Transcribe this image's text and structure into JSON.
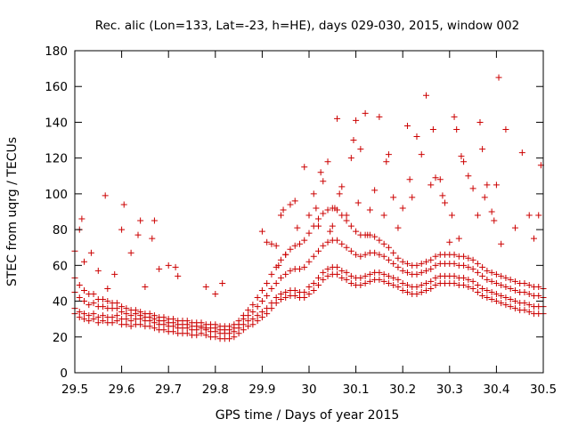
{
  "chart_data": {
    "type": "scatter",
    "title": "Rec. alic (Lon=133, Lat=-23, h=HE), days 029-030, 2015, window 002",
    "xlabel": "GPS time / Days of year 2015",
    "ylabel": "STEC from uqrg / TECUs",
    "xlim": [
      29.5,
      30.5
    ],
    "ylim": [
      0,
      180
    ],
    "xticks": [
      "29.5",
      "29.6",
      "29.7",
      "29.8",
      "29.9",
      "30",
      "30.1",
      "30.2",
      "30.3",
      "30.4",
      "30.5"
    ],
    "yticks": [
      "0",
      "20",
      "40",
      "60",
      "80",
      "100",
      "120",
      "140",
      "160",
      "180"
    ],
    "grid": false,
    "legend": "none",
    "marker": "plus",
    "color": "#cc0000",
    "series": [
      {
        "x": [
          29.5,
          29.51,
          29.52,
          29.53,
          29.54,
          29.55,
          29.56,
          29.57,
          29.58,
          29.59,
          29.6,
          29.61,
          29.62,
          29.63,
          29.64,
          29.65,
          29.66,
          29.67,
          29.68,
          29.69,
          29.7,
          29.71,
          29.72,
          29.73,
          29.74,
          29.75,
          29.76,
          29.77,
          29.78,
          29.79,
          29.8,
          29.81,
          29.82,
          29.83,
          29.84,
          29.85,
          29.86,
          29.87,
          29.88,
          29.89,
          29.9,
          29.91,
          29.92,
          29.93,
          29.94,
          29.95,
          29.96,
          29.97,
          29.98,
          29.99,
          30.0,
          30.01,
          30.02,
          30.03,
          30.04,
          30.05,
          30.06,
          30.07,
          30.08,
          30.09,
          30.1,
          30.11,
          30.12,
          30.13,
          30.14,
          30.15,
          30.16,
          30.17,
          30.18,
          30.19,
          30.2,
          30.21,
          30.22,
          30.23,
          30.24,
          30.25,
          30.26,
          30.27,
          30.28,
          30.29,
          30.3,
          30.31,
          30.32,
          30.33,
          30.34,
          30.35,
          30.36,
          30.37,
          30.38,
          30.39,
          30.4,
          30.41,
          30.42,
          30.43,
          30.44,
          30.45,
          30.46,
          30.47,
          30.48,
          30.49,
          30.5,
          29.5,
          29.51,
          29.52,
          29.53,
          29.54,
          29.55,
          29.56,
          29.57,
          29.58,
          29.59,
          29.6,
          29.61,
          29.62,
          29.63,
          29.64,
          29.65,
          29.66,
          29.67,
          29.68,
          29.69,
          29.7,
          29.71,
          29.72,
          29.73,
          29.74,
          29.75,
          29.76,
          29.77,
          29.78,
          29.79,
          29.8,
          29.81,
          29.82,
          29.83,
          29.84,
          29.85,
          29.86,
          29.87,
          29.88,
          29.89,
          29.9,
          29.91,
          29.92,
          29.93,
          29.94,
          29.95,
          29.96,
          29.97,
          29.98,
          29.99,
          30.0,
          30.01,
          30.02,
          30.03,
          30.04,
          30.05,
          30.06,
          30.07,
          30.08,
          30.09,
          30.1,
          30.11,
          30.12,
          30.13,
          30.14,
          30.15,
          30.16,
          30.17,
          30.18,
          30.19,
          30.2,
          30.21,
          30.22,
          30.23,
          30.24,
          30.25,
          30.26,
          30.27,
          30.28,
          30.29,
          30.3,
          30.31,
          30.32,
          30.33,
          30.34,
          30.35,
          30.36,
          30.37,
          30.38,
          30.39,
          30.4,
          30.41,
          30.42,
          30.43,
          30.44,
          30.45,
          30.46,
          30.47,
          30.48,
          30.49,
          30.5,
          29.5,
          29.51,
          29.52,
          29.53,
          29.54,
          29.55,
          29.56,
          29.57,
          29.58,
          29.59,
          29.6,
          29.61,
          29.62,
          29.63,
          29.64,
          29.65,
          29.66,
          29.67,
          29.68,
          29.69,
          29.7,
          29.71,
          29.72,
          29.73,
          29.74,
          29.75,
          29.76,
          29.77,
          29.78,
          29.79,
          29.8,
          29.81,
          29.82,
          29.83,
          29.84,
          29.85,
          29.86,
          29.87,
          29.88,
          29.89,
          29.9,
          29.91,
          29.92,
          29.93,
          29.94,
          29.95,
          29.96,
          29.97,
          29.98,
          29.99,
          30.0,
          30.01,
          30.02,
          30.03,
          30.04,
          30.05,
          30.06,
          30.07,
          30.08,
          30.09,
          30.1,
          30.11,
          30.12,
          30.13,
          30.14,
          30.15,
          30.16,
          30.17,
          30.18,
          30.19,
          30.2,
          30.21,
          30.22,
          30.23,
          30.24,
          30.25,
          30.26,
          30.27,
          30.28,
          30.29,
          30.3,
          30.31,
          30.32,
          30.33,
          30.34,
          30.35,
          30.36,
          30.37,
          30.38,
          30.39,
          30.4,
          30.41,
          30.42,
          30.43,
          30.44,
          30.45,
          30.46,
          30.47,
          30.48,
          30.49,
          30.5,
          29.5,
          29.51,
          29.52,
          29.53,
          29.54,
          29.55,
          29.56,
          29.57,
          29.58,
          29.59,
          29.6,
          29.61,
          29.62,
          29.63,
          29.64,
          29.65,
          29.66,
          29.67,
          29.68,
          29.69,
          29.7,
          29.71,
          29.72,
          29.73,
          29.74,
          29.75,
          29.76,
          29.77,
          29.78,
          29.79,
          29.8,
          29.81,
          29.82,
          29.83,
          29.84,
          29.85,
          29.86,
          29.87,
          29.88,
          29.89,
          29.9,
          29.91,
          29.92,
          29.93,
          29.94,
          29.95,
          29.96,
          29.97,
          29.98,
          29.99,
          30.0,
          30.01,
          30.02,
          30.03,
          30.04,
          30.05,
          30.06,
          30.07,
          30.08,
          30.09,
          30.1,
          30.11,
          30.12,
          30.13,
          30.14,
          30.15,
          30.16,
          30.17,
          30.18,
          30.19,
          30.2,
          30.21,
          30.22,
          30.23,
          30.24,
          30.25,
          30.26,
          30.27,
          30.28,
          30.29,
          30.3,
          30.31,
          30.32,
          30.33,
          30.34,
          30.35,
          30.36,
          30.37,
          30.38,
          30.39,
          30.4,
          30.41,
          30.42,
          30.43,
          30.44,
          30.45,
          30.46,
          30.47,
          30.48,
          30.49,
          30.5,
          29.5,
          29.51,
          29.515,
          29.52,
          29.535,
          29.55,
          29.565,
          29.57,
          29.585,
          29.6,
          29.605,
          29.62,
          29.635,
          29.64,
          29.65,
          29.665,
          29.67,
          29.68,
          29.7,
          29.715,
          29.72,
          29.78,
          29.8,
          29.815,
          29.9,
          29.91,
          29.92,
          29.93,
          29.935,
          29.94,
          29.945,
          29.95,
          29.96,
          29.97,
          29.975,
          29.99,
          30.0,
          30.01,
          30.015,
          30.02,
          30.025,
          30.03,
          30.04,
          30.045,
          30.05,
          30.055,
          30.06,
          30.065,
          30.07,
          30.08,
          30.09,
          30.095,
          30.1,
          30.105,
          30.11,
          30.12,
          30.125,
          30.13,
          30.14,
          30.15,
          30.16,
          30.165,
          30.17,
          30.18,
          30.19,
          30.2,
          30.21,
          30.215,
          30.22,
          30.23,
          30.24,
          30.25,
          30.26,
          30.265,
          30.27,
          30.28,
          30.285,
          30.29,
          30.3,
          30.305,
          30.31,
          30.315,
          30.32,
          30.325,
          30.33,
          30.34,
          30.35,
          30.36,
          30.365,
          30.37,
          30.375,
          30.38,
          30.39,
          30.395,
          30.4,
          30.405,
          30.41,
          30.42,
          30.44,
          30.455,
          30.47,
          30.48,
          30.49,
          30.495
        ],
        "y": [
          33,
          31,
          30,
          29,
          30,
          28,
          29,
          28,
          28,
          29,
          27,
          27,
          26,
          27,
          27,
          26,
          26,
          25,
          24,
          24,
          23,
          23,
          22,
          22,
          22,
          21,
          21,
          22,
          21,
          20,
          20,
          19,
          19,
          19,
          20,
          22,
          24,
          26,
          27,
          29,
          31,
          33,
          36,
          39,
          41,
          42,
          43,
          43,
          42,
          42,
          44,
          46,
          49,
          52,
          54,
          55,
          55,
          53,
          52,
          50,
          49,
          49,
          50,
          51,
          52,
          52,
          51,
          50,
          49,
          48,
          46,
          45,
          44,
          44,
          45,
          46,
          47,
          49,
          50,
          50,
          50,
          50,
          49,
          49,
          48,
          47,
          45,
          43,
          42,
          41,
          40,
          39,
          38,
          37,
          36,
          35,
          35,
          34,
          33,
          33,
          33,
          36,
          34,
          33,
          32,
          33,
          31,
          32,
          31,
          31,
          32,
          30,
          30,
          29,
          30,
          30,
          29,
          29,
          28,
          27,
          27,
          26,
          26,
          25,
          25,
          25,
          24,
          24,
          25,
          24,
          23,
          23,
          22,
          22,
          22,
          23,
          25,
          27,
          29,
          30,
          32,
          34,
          36,
          39,
          42,
          44,
          45,
          46,
          46,
          45,
          45,
          48,
          50,
          53,
          56,
          58,
          59,
          59,
          57,
          56,
          54,
          53,
          53,
          54,
          55,
          56,
          56,
          55,
          54,
          53,
          52,
          50,
          49,
          48,
          48,
          49,
          50,
          51,
          53,
          54,
          54,
          54,
          54,
          53,
          53,
          52,
          51,
          49,
          47,
          46,
          45,
          44,
          43,
          42,
          41,
          40,
          39,
          39,
          38,
          37,
          37,
          37,
          45,
          42,
          40,
          38,
          39,
          37,
          37,
          36,
          36,
          36,
          34,
          33,
          32,
          33,
          32,
          31,
          31,
          30,
          29,
          29,
          28,
          28,
          27,
          27,
          27,
          26,
          26,
          26,
          25,
          25,
          25,
          24,
          24,
          24,
          25,
          27,
          30,
          32,
          34,
          37,
          40,
          43,
          47,
          50,
          53,
          55,
          57,
          58,
          58,
          59,
          62,
          65,
          68,
          71,
          73,
          74,
          74,
          72,
          70,
          68,
          66,
          65,
          66,
          67,
          67,
          66,
          65,
          63,
          61,
          59,
          57,
          56,
          55,
          55,
          56,
          57,
          58,
          60,
          61,
          61,
          61,
          61,
          60,
          60,
          59,
          58,
          56,
          54,
          52,
          51,
          50,
          49,
          48,
          47,
          46,
          45,
          45,
          44,
          43,
          43,
          42,
          53,
          49,
          46,
          44,
          44,
          41,
          41,
          40,
          39,
          39,
          37,
          36,
          35,
          35,
          34,
          33,
          33,
          32,
          31,
          31,
          30,
          30,
          29,
          29,
          29,
          28,
          28,
          28,
          27,
          27,
          27,
          26,
          26,
          26,
          27,
          29,
          32,
          35,
          38,
          42,
          46,
          50,
          55,
          59,
          63,
          66,
          69,
          71,
          72,
          74,
          78,
          82,
          86,
          89,
          91,
          92,
          91,
          88,
          85,
          82,
          79,
          77,
          77,
          77,
          76,
          74,
          72,
          70,
          67,
          64,
          62,
          61,
          60,
          60,
          61,
          62,
          63,
          65,
          66,
          66,
          66,
          66,
          65,
          65,
          64,
          63,
          61,
          59,
          57,
          56,
          55,
          54,
          53,
          52,
          51,
          50,
          50,
          49,
          48,
          48,
          47,
          68,
          80,
          86,
          62,
          67,
          57,
          99,
          47,
          55,
          80,
          94,
          67,
          77,
          85,
          48,
          75,
          85,
          58,
          60,
          59,
          54,
          48,
          44,
          50,
          79,
          73,
          72,
          71,
          60,
          88,
          91,
          66,
          94,
          96,
          81,
          115,
          88,
          100,
          92,
          82,
          112,
          107,
          118,
          79,
          82,
          92,
          142,
          100,
          104,
          88,
          120,
          130,
          141,
          95,
          125,
          145,
          77,
          91,
          102,
          143,
          88,
          118,
          122,
          98,
          81,
          92,
          138,
          108,
          98,
          132,
          122,
          155,
          105,
          136,
          109,
          108,
          99,
          95,
          73,
          88,
          143,
          136,
          75,
          121,
          118,
          110,
          103,
          88,
          140,
          125,
          98,
          105,
          90,
          85,
          105,
          165,
          72,
          136,
          81,
          123,
          88,
          75,
          88,
          116
        ]
      }
    ]
  }
}
